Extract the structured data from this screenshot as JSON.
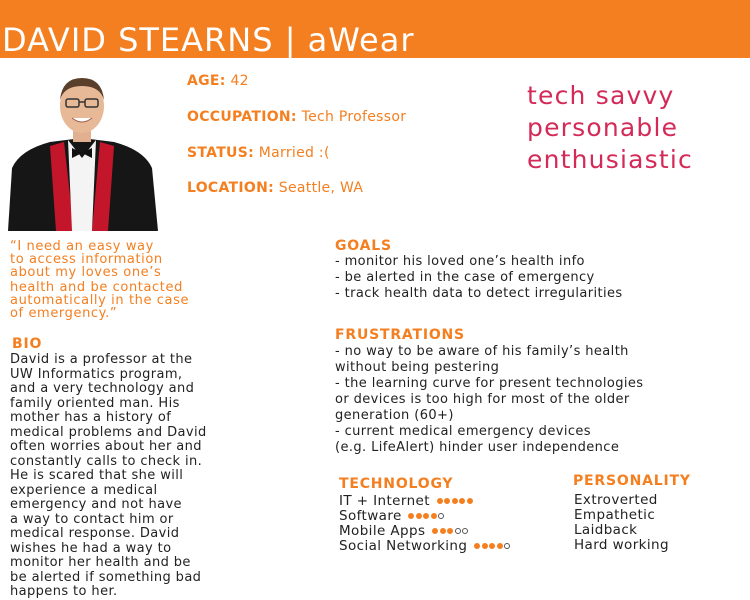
{
  "header": {
    "title": "DAVID STEARNS | aWear"
  },
  "profile": {
    "age_label": "AGE:",
    "age_value": "42",
    "occupation_label": "OCCUPATION:",
    "occupation_value": "Tech Professor",
    "status_label": "STATUS:",
    "status_value": "Married :(",
    "location_label": "LOCATION:",
    "location_value": "Seattle, WA"
  },
  "traits": [
    "tech savvy",
    "personable",
    "enthusiastic"
  ],
  "quote_lines": [
    "“I need an easy way",
    "to access information",
    "about my loves one’s",
    "health and be contacted",
    "automatically in the case",
    "of emergency.”"
  ],
  "bio": {
    "heading": "BIO",
    "lines": [
      "David is a professor at the",
      "UW Informatics program,",
      "and a very technology and",
      "family oriented man. His",
      "mother has a history of",
      "medical problems and David",
      "often worries about her and",
      "constantly calls to check in.",
      "He is scared that she will",
      "experience a medical",
      "emergency and not have",
      "a way to contact him or",
      "medical response. David",
      "wishes he had a way to",
      "monitor her health and be",
      "be alerted if something bad",
      "happens to her."
    ]
  },
  "goals": {
    "heading": "GOALS",
    "items": [
      "- monitor his loved one’s health info",
      "- be alerted in the case of emergency",
      "- track health data to detect irregularities"
    ]
  },
  "frustrations": {
    "heading": "FRUSTRATIONS",
    "items": [
      "- no way to be aware of his family’s health",
      "without being pestering",
      "- the learning curve for present technologies",
      "or devices is too high for most of the older",
      "generation (60+)",
      "- current medical emergency devices",
      "(e.g. LifeAlert) hinder user independence"
    ]
  },
  "technology": {
    "heading": "TECHNOLOGY",
    "items": [
      {
        "label": "IT + Internet",
        "level": 5,
        "max": 5
      },
      {
        "label": "Software",
        "level": 4,
        "max": 5
      },
      {
        "label": "Mobile Apps",
        "level": 3,
        "max": 5
      },
      {
        "label": "Social Networking",
        "level": 4,
        "max": 5
      }
    ]
  },
  "personality": {
    "heading": "PERSONALITY",
    "items": [
      "Extroverted",
      "Empathetic",
      "Laidback",
      "Hard working"
    ]
  },
  "colors": {
    "accent": "#f47f20",
    "traits": "#d42a58",
    "text": "#222222"
  }
}
